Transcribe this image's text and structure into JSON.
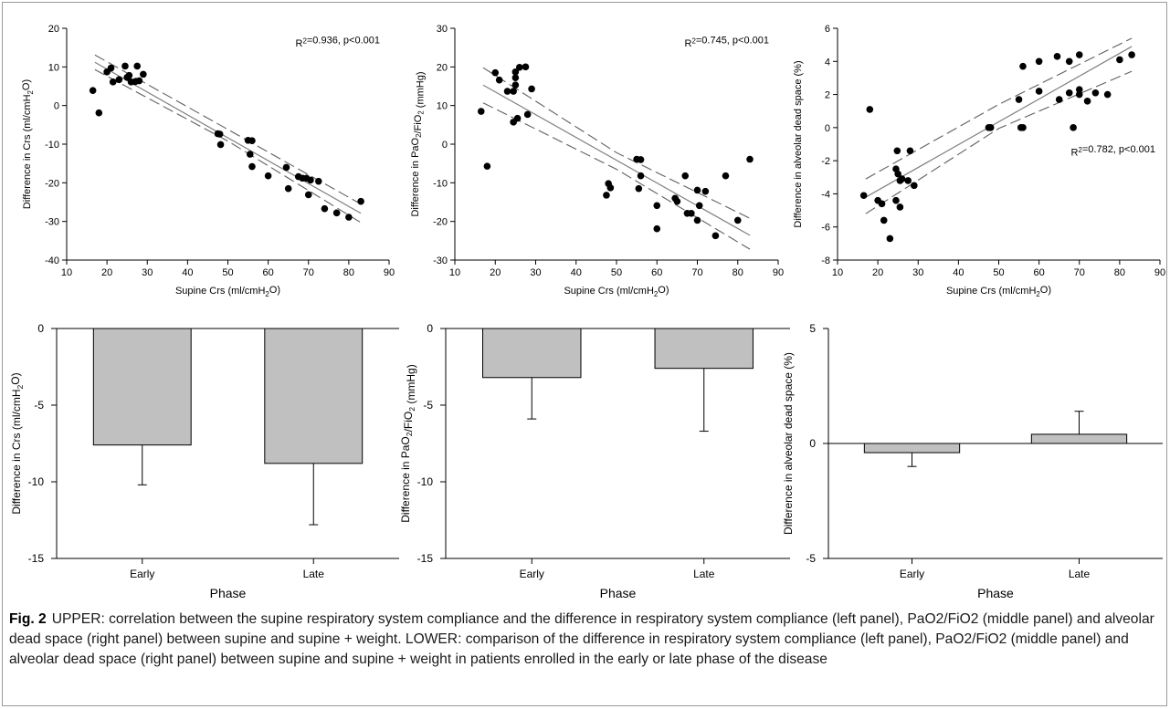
{
  "chart_data": [
    {
      "panel": "upper-left",
      "type": "scatter",
      "xlabel": "Supine Crs (ml/cmH2O)",
      "ylabel": "Difference in Crs (ml/cmH2O)",
      "xlim": [
        10,
        90
      ],
      "ylim": [
        -40,
        20
      ],
      "xticks": [
        "10",
        "20",
        "30",
        "40",
        "50",
        "60",
        "70",
        "80",
        "90"
      ],
      "yticks": [
        "20",
        "10",
        "0",
        "-10",
        "-20",
        "-30",
        "-40"
      ],
      "annotation": "R2=0.936, p<0.001",
      "fit": {
        "x": [
          17,
          83
        ],
        "y": [
          11.2,
          -27.9
        ]
      },
      "ci": {
        "x": [
          17,
          50,
          83
        ],
        "lower": [
          9.3,
          -9.2,
          -30.3
        ],
        "upper": [
          13.1,
          -6.2,
          -25.5
        ]
      },
      "points": [
        [
          16.5,
          3.9
        ],
        [
          18,
          -1.9
        ],
        [
          20,
          8.7
        ],
        [
          21,
          9.7
        ],
        [
          21.5,
          6.1
        ],
        [
          23,
          6.7
        ],
        [
          24.5,
          10.2
        ],
        [
          25,
          7.3
        ],
        [
          25.5,
          7.8
        ],
        [
          26,
          6.1
        ],
        [
          27,
          6.2
        ],
        [
          27.5,
          10.2
        ],
        [
          28,
          6.4
        ],
        [
          29,
          8.1
        ],
        [
          47.5,
          -7.3
        ],
        [
          48,
          -7.4
        ],
        [
          48.2,
          -10.1
        ],
        [
          55,
          -9
        ],
        [
          55.5,
          -12.6
        ],
        [
          56,
          -9.1
        ],
        [
          56,
          -15.8
        ],
        [
          60,
          -18.2
        ],
        [
          64.5,
          -16
        ],
        [
          65,
          -21.5
        ],
        [
          67.5,
          -18.4
        ],
        [
          68.5,
          -18.8
        ],
        [
          69.5,
          -18.8
        ],
        [
          70,
          -23.1
        ],
        [
          70.5,
          -19.3
        ],
        [
          72.5,
          -19.6
        ],
        [
          74,
          -26.7
        ],
        [
          77,
          -27.8
        ],
        [
          80,
          -28.9
        ],
        [
          83,
          -24.8
        ]
      ]
    },
    {
      "panel": "upper-middle",
      "type": "scatter",
      "xlabel": "Supine Crs (ml/cmH2O)",
      "ylabel": "Difference in PaO2/FiO2 (mmHg)",
      "xlim": [
        10,
        90
      ],
      "ylim": [
        -30,
        30
      ],
      "xticks": [
        "10",
        "20",
        "30",
        "40",
        "50",
        "60",
        "70",
        "80",
        "90"
      ],
      "yticks": [
        "30",
        "20",
        "10",
        "0",
        "-10",
        "-20",
        "-30"
      ],
      "annotation": "R2=0.745, p<0.001",
      "fit": {
        "x": [
          17,
          83
        ],
        "y": [
          15.3,
          -23.6
        ]
      },
      "ci": {
        "x": [
          17,
          50,
          83
        ],
        "lower": [
          10.7,
          -6.5,
          -27.2
        ],
        "upper": [
          19.8,
          -2.2,
          -19.2
        ]
      },
      "points": [
        [
          16.5,
          8.5
        ],
        [
          18,
          -5.7
        ],
        [
          20,
          18.5
        ],
        [
          21,
          16.6
        ],
        [
          23,
          13.7
        ],
        [
          24.5,
          13.7
        ],
        [
          24.5,
          5.7
        ],
        [
          25,
          15.3
        ],
        [
          25,
          17.2
        ],
        [
          25,
          18.7
        ],
        [
          25.5,
          6.7
        ],
        [
          26,
          19.9
        ],
        [
          27.5,
          20
        ],
        [
          28,
          7.7
        ],
        [
          29,
          14.3
        ],
        [
          47.5,
          -13.2
        ],
        [
          48,
          -10.2
        ],
        [
          48.5,
          -11.3
        ],
        [
          55,
          -3.9
        ],
        [
          55.5,
          -11.5
        ],
        [
          56,
          -4
        ],
        [
          56,
          -8.2
        ],
        [
          60,
          -21.9
        ],
        [
          60,
          -15.9
        ],
        [
          64.5,
          -14
        ],
        [
          65,
          -14.8
        ],
        [
          67,
          -8.2
        ],
        [
          67.5,
          -17.9
        ],
        [
          68.5,
          -17.9
        ],
        [
          70,
          -19.7
        ],
        [
          70,
          -11.9
        ],
        [
          70.5,
          -15.9
        ],
        [
          72,
          -12.2
        ],
        [
          74.5,
          -23.7
        ],
        [
          77,
          -8.2
        ],
        [
          80,
          -19.7
        ],
        [
          83,
          -3.9
        ]
      ]
    },
    {
      "panel": "upper-right",
      "type": "scatter",
      "xlabel": "Supine Crs (ml/cmH2O)",
      "ylabel": "Difference in alveolar dead space (%)",
      "xlim": [
        10,
        90
      ],
      "ylim": [
        -8,
        6
      ],
      "xticks": [
        "10",
        "20",
        "30",
        "40",
        "50",
        "60",
        "70",
        "80",
        "90"
      ],
      "yticks": [
        "6",
        "4",
        "2",
        "0",
        "-2",
        "-4",
        "-6",
        "-8"
      ],
      "annotation": "R2=0.782, p<0.001",
      "fit": {
        "x": [
          17,
          83
        ],
        "y": [
          -4.2,
          4.9
        ]
      },
      "ci": {
        "x": [
          17,
          50,
          83
        ],
        "lower": [
          -5.2,
          -0.05,
          3.4
        ],
        "upper": [
          -3.1,
          1.4,
          5.4
        ]
      },
      "points": [
        [
          16.5,
          -4.1
        ],
        [
          18,
          1.1
        ],
        [
          20,
          -4.4
        ],
        [
          21,
          -4.6
        ],
        [
          21.5,
          -5.6
        ],
        [
          23,
          -6.7
        ],
        [
          24.5,
          -4.4
        ],
        [
          24.5,
          -2.5
        ],
        [
          24.8,
          -1.4
        ],
        [
          25,
          -2.8
        ],
        [
          25.5,
          -3.2
        ],
        [
          25.5,
          -4.8
        ],
        [
          26,
          -3.1
        ],
        [
          27.5,
          -3.2
        ],
        [
          28,
          -1.4
        ],
        [
          29,
          -3.5
        ],
        [
          47.5,
          0
        ],
        [
          48,
          0
        ],
        [
          55,
          1.7
        ],
        [
          55.5,
          0
        ],
        [
          56,
          0
        ],
        [
          56,
          3.7
        ],
        [
          60,
          4
        ],
        [
          60,
          2.2
        ],
        [
          64.5,
          4.3
        ],
        [
          65,
          1.7
        ],
        [
          67.5,
          4
        ],
        [
          67.5,
          2.1
        ],
        [
          68.5,
          0
        ],
        [
          70,
          2
        ],
        [
          70,
          2.3
        ],
        [
          70,
          4.4
        ],
        [
          72,
          1.6
        ],
        [
          74,
          2.1
        ],
        [
          77,
          2
        ],
        [
          80,
          4.1
        ],
        [
          83,
          4.4
        ]
      ]
    },
    {
      "panel": "lower-left",
      "type": "bar",
      "categories": [
        "Early",
        "Late"
      ],
      "values": [
        -7.6,
        -8.8
      ],
      "error": [
        2.6,
        4.0
      ],
      "xlabel": "Phase",
      "ylabel": "Difference in Crs (ml/cmH2O)",
      "ylim": [
        -15,
        0
      ],
      "yticks": [
        "0",
        "-5",
        "-10",
        "-15"
      ]
    },
    {
      "panel": "lower-middle",
      "type": "bar",
      "categories": [
        "Early",
        "Late"
      ],
      "values": [
        -3.2,
        -2.6
      ],
      "error": [
        2.7,
        4.1
      ],
      "xlabel": "Phase",
      "ylabel": "Difference in PaO2/FiO2 (mmHg)",
      "ylim": [
        -15,
        0
      ],
      "yticks": [
        "0",
        "-5",
        "-10",
        "-15"
      ]
    },
    {
      "panel": "lower-right",
      "type": "bar",
      "categories": [
        "Early",
        "Late"
      ],
      "values": [
        -0.4,
        0.4
      ],
      "error": [
        0.6,
        1.0
      ],
      "xlabel": "Phase",
      "ylabel": "Difference in alveolar dead space (%)",
      "ylim": [
        -5,
        5
      ],
      "yticks": [
        "5",
        "0",
        "-5"
      ]
    }
  ],
  "caption": {
    "label": "Fig. 2",
    "text": "UPPER: correlation between the supine respiratory system compliance and the difference in respiratory system compliance (left panel), PaO2/FiO2 (middle panel) and alveolar dead space (right panel) between supine and supine + weight. LOWER: comparison of the difference in respiratory system compliance (left panel), PaO2/FiO2 (middle panel) and alveolar dead space (right panel) between supine and supine + weight in patients enrolled in the early or late phase of the disease"
  },
  "colors": {
    "bar_fill": "#c0c0c0",
    "marker": "#000000",
    "fit_line": "#808080",
    "ci_line": "#606060"
  }
}
